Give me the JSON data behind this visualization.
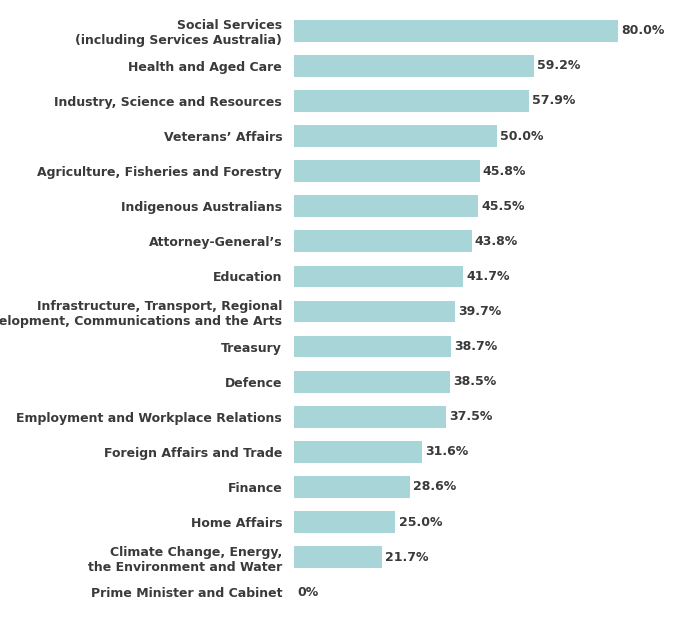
{
  "categories": [
    "Social Services\n(including Services Australia)",
    "Health and Aged Care",
    "Industry, Science and Resources",
    "Veterans’ Affairs",
    "Agriculture, Fisheries and Forestry",
    "Indigenous Australians",
    "Attorney-General’s",
    "Education",
    "Infrastructure, Transport, Regional\nDevelopment, Communications and the Arts",
    "Treasury",
    "Defence",
    "Employment and Workplace Relations",
    "Foreign Affairs and Trade",
    "Finance",
    "Home Affairs",
    "Climate Change, Energy,\nthe Environment and Water",
    "Prime Minister and Cabinet"
  ],
  "values": [
    80.0,
    59.2,
    57.9,
    50.0,
    45.8,
    45.5,
    43.8,
    41.7,
    39.7,
    38.7,
    38.5,
    37.5,
    31.6,
    28.6,
    25.0,
    21.7,
    0.0
  ],
  "labels": [
    "80.0%",
    "59.2%",
    "57.9%",
    "50.0%",
    "45.8%",
    "45.5%",
    "43.8%",
    "41.7%",
    "39.7%",
    "38.7%",
    "38.5%",
    "37.5%",
    "31.6%",
    "28.6%",
    "25.0%",
    "21.7%",
    "0%"
  ],
  "bar_color": "#a8d5d8",
  "background_color": "#ffffff",
  "text_color": "#3a3a3a",
  "xlim": [
    0,
    95
  ],
  "bar_height": 0.62,
  "figsize": [
    7.0,
    6.23
  ],
  "dpi": 100,
  "label_fontsize": 9.0,
  "tick_fontsize": 9.0
}
